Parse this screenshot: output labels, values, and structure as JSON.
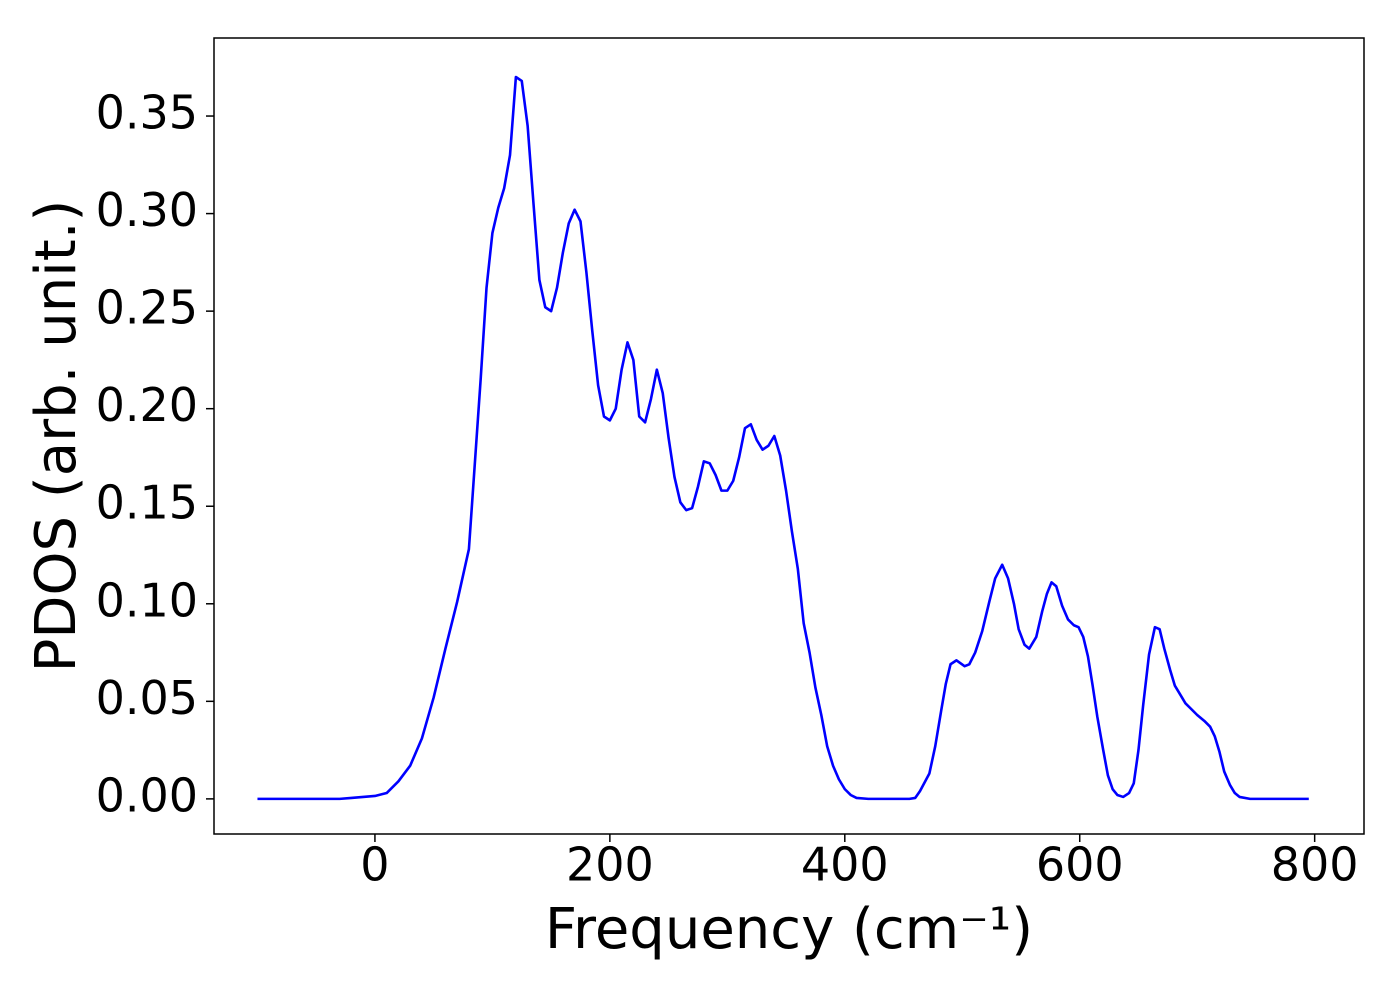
{
  "chart_data": {
    "type": "line",
    "xlabel": "Frequency (cm⁻¹)",
    "ylabel": "PDOS (arb. unit.)",
    "xlim": [
      -137,
      842
    ],
    "ylim": [
      -0.018,
      0.39
    ],
    "xticks": [
      0,
      200,
      400,
      600,
      800
    ],
    "yticks": [
      {
        "value": 0,
        "label": "0.00"
      },
      {
        "value": 0.05,
        "label": "0.05"
      },
      {
        "value": 0.1,
        "label": "0.10"
      },
      {
        "value": 0.15,
        "label": "0.15"
      },
      {
        "value": 0.2,
        "label": "0.20"
      },
      {
        "value": 0.25,
        "label": "0.25"
      },
      {
        "value": 0.3,
        "label": "0.30"
      },
      {
        "value": 0.35,
        "label": "0.35"
      }
    ],
    "grid": false,
    "x": [
      -100,
      -90,
      -80,
      -70,
      -60,
      -50,
      -40,
      -30,
      -20,
      -10,
      0,
      10,
      20,
      30,
      40,
      50,
      60,
      70,
      80,
      90,
      95,
      100,
      105,
      110,
      115,
      120,
      125,
      130,
      135,
      140,
      145,
      150,
      155,
      160,
      165,
      170,
      175,
      180,
      185,
      190,
      195,
      200,
      205,
      210,
      215,
      220,
      225,
      230,
      235,
      240,
      245,
      250,
      255,
      260,
      265,
      270,
      275,
      280,
      285,
      290,
      295,
      300,
      305,
      310,
      315,
      320,
      325,
      330,
      335,
      340,
      345,
      350,
      355,
      360,
      365,
      370,
      375,
      380,
      385,
      390,
      395,
      400,
      405,
      410,
      420,
      440,
      455,
      460,
      464,
      472,
      477,
      482,
      486,
      490,
      495,
      502,
      506,
      511,
      517,
      523,
      528,
      534,
      539,
      544,
      548,
      553,
      557,
      563,
      568,
      572,
      576,
      580,
      585,
      590,
      595,
      599,
      603,
      607,
      611,
      615,
      620,
      624,
      628,
      632,
      637,
      642,
      646,
      650,
      654,
      659,
      664,
      668,
      672,
      677,
      681,
      686,
      690,
      695,
      700,
      706,
      711,
      715,
      719,
      723,
      728,
      732,
      736,
      745,
      770,
      795
    ],
    "series": [
      {
        "color": "#0000ff",
        "values": [
          0,
          0,
          0,
          0,
          0,
          0,
          0,
          0,
          0.0005,
          0.001,
          0.0015,
          0.003,
          0.009,
          0.017,
          0.031,
          0.052,
          0.077,
          0.101,
          0.128,
          0.215,
          0.262,
          0.29,
          0.303,
          0.313,
          0.33,
          0.37,
          0.368,
          0.345,
          0.305,
          0.266,
          0.252,
          0.25,
          0.262,
          0.28,
          0.295,
          0.302,
          0.296,
          0.27,
          0.24,
          0.212,
          0.196,
          0.194,
          0.2,
          0.22,
          0.234,
          0.225,
          0.196,
          0.193,
          0.205,
          0.22,
          0.208,
          0.185,
          0.165,
          0.152,
          0.148,
          0.149,
          0.16,
          0.173,
          0.172,
          0.166,
          0.158,
          0.158,
          0.163,
          0.175,
          0.19,
          0.192,
          0.184,
          0.179,
          0.181,
          0.186,
          0.176,
          0.158,
          0.137,
          0.118,
          0.09,
          0.075,
          0.057,
          0.043,
          0.027,
          0.017,
          0.01,
          0.005,
          0.002,
          0.0005,
          0,
          0,
          0,
          0.0005,
          0.004,
          0.013,
          0.027,
          0.045,
          0.059,
          0.069,
          0.071,
          0.068,
          0.069,
          0.075,
          0.086,
          0.101,
          0.113,
          0.12,
          0.113,
          0.1,
          0.087,
          0.079,
          0.077,
          0.083,
          0.096,
          0.105,
          0.111,
          0.109,
          0.099,
          0.092,
          0.089,
          0.088,
          0.083,
          0.073,
          0.058,
          0.042,
          0.025,
          0.012,
          0.005,
          0.002,
          0.001,
          0.003,
          0.008,
          0.025,
          0.048,
          0.074,
          0.088,
          0.087,
          0.077,
          0.066,
          0.058,
          0.053,
          0.049,
          0.046,
          0.043,
          0.04,
          0.037,
          0.032,
          0.024,
          0.014,
          0.007,
          0.003,
          0.001,
          0,
          0,
          0
        ]
      }
    ]
  }
}
